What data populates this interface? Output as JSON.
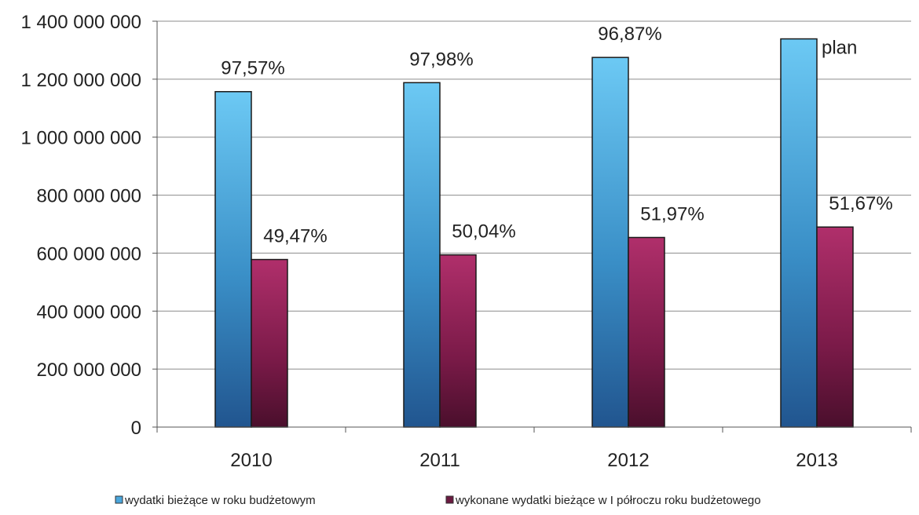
{
  "chart_data": {
    "type": "bar",
    "categories": [
      "2010",
      "2011",
      "2012",
      "2013"
    ],
    "ylim": [
      0,
      1400000000
    ],
    "yticks": [
      0,
      200000000,
      400000000,
      600000000,
      800000000,
      1000000000,
      1200000000,
      1400000000
    ],
    "ytick_labels": [
      "0",
      "200 000 000",
      "400 000 000",
      "600 000 000",
      "800 000 000",
      "1 000 000 000",
      "1 200 000 000",
      "1 400 000 000"
    ],
    "grid": true,
    "legend_position": "bottom",
    "series": [
      {
        "name": "wydatki bieżące w roku budżetowym",
        "values": [
          1157000000,
          1188000000,
          1275000000,
          1339000000
        ],
        "labels": [
          "97,57%",
          "97,98%",
          "96,87%",
          "plan"
        ],
        "color": "#4aa6dc"
      },
      {
        "name": "wykonane wydatki bieżące w I półroczu roku budżetowego",
        "values": [
          578000000,
          594000000,
          654000000,
          690000000
        ],
        "labels": [
          "49,47%",
          "50,04%",
          "51,97%",
          "51,67%"
        ],
        "color": "#8e1c52"
      }
    ]
  }
}
